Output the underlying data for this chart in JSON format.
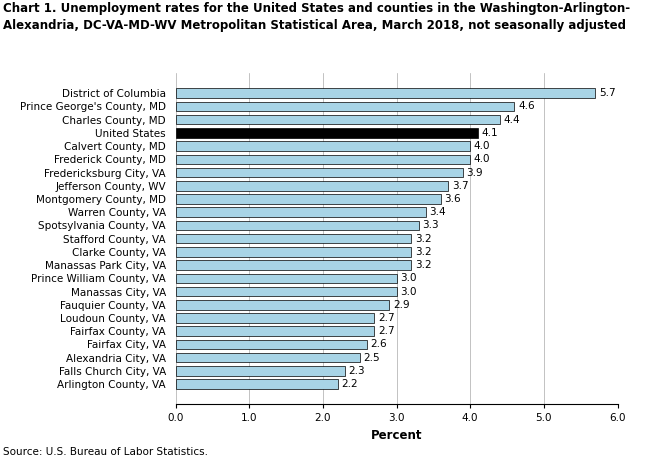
{
  "title_line1": "Chart 1. Unemployment rates for the United States and counties in the Washington-Arlington-",
  "title_line2": "Alexandria, DC-VA-MD-WV Metropolitan Statistical Area, March 2018, not seasonally adjusted",
  "categories": [
    "District of Columbia",
    "Prince George's County, MD",
    "Charles County, MD",
    "United States",
    "Calvert County, MD",
    "Frederick County, MD",
    "Fredericksburg City, VA",
    "Jefferson County, WV",
    "Montgomery County, MD",
    "Warren County, VA",
    "Spotsylvania County, VA",
    "Stafford County, VA",
    "Clarke County, VA",
    "Manassas Park City, VA",
    "Prince William County, VA",
    "Manassas City, VA",
    "Fauquier County, VA",
    "Loudoun County, VA",
    "Fairfax County, VA",
    "Fairfax City, VA",
    "Alexandria City, VA",
    "Falls Church City, VA",
    "Arlington County, VA"
  ],
  "values": [
    5.7,
    4.6,
    4.4,
    4.1,
    4.0,
    4.0,
    3.9,
    3.7,
    3.6,
    3.4,
    3.3,
    3.2,
    3.2,
    3.2,
    3.0,
    3.0,
    2.9,
    2.7,
    2.7,
    2.6,
    2.5,
    2.3,
    2.2
  ],
  "bar_colors": [
    "#a8d4e6",
    "#a8d4e6",
    "#a8d4e6",
    "#000000",
    "#a8d4e6",
    "#a8d4e6",
    "#a8d4e6",
    "#a8d4e6",
    "#a8d4e6",
    "#a8d4e6",
    "#a8d4e6",
    "#a8d4e6",
    "#a8d4e6",
    "#a8d4e6",
    "#a8d4e6",
    "#a8d4e6",
    "#a8d4e6",
    "#a8d4e6",
    "#a8d4e6",
    "#a8d4e6",
    "#a8d4e6",
    "#a8d4e6",
    "#a8d4e6"
  ],
  "xlabel": "Percent",
  "xlim": [
    0,
    6.0
  ],
  "xticks": [
    0.0,
    1.0,
    2.0,
    3.0,
    4.0,
    5.0,
    6.0
  ],
  "xtick_labels": [
    "0.0",
    "1.0",
    "2.0",
    "3.0",
    "4.0",
    "5.0",
    "6.0"
  ],
  "source": "Source: U.S. Bureau of Labor Statistics.",
  "bar_edge_color": "#000000",
  "bar_edge_width": 0.5,
  "label_fontsize": 7.5,
  "value_fontsize": 7.5,
  "title_fontsize": 8.5,
  "xlabel_fontsize": 8.5,
  "source_fontsize": 7.5,
  "background_color": "#ffffff"
}
